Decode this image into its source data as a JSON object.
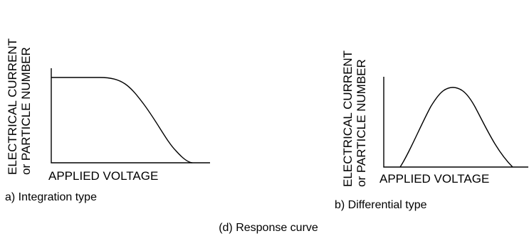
{
  "left_panel": {
    "y_axis_label_line1": "ELECTRICAL CURRENT",
    "y_axis_label_line2": "or PARTICLE NUMBER",
    "x_axis_label": "APPLIED VOLTAGE",
    "caption": "a) Integration type",
    "curve": "plateau-then-falling"
  },
  "right_panel": {
    "y_axis_label_line1": "ELECTRICAL CURRENT",
    "y_axis_label_line2": "or PARTICLE NUMBER",
    "x_axis_label": "APPLIED VOLTAGE",
    "caption": "b) Differential type",
    "curve": "bell-shaped-peak"
  },
  "figure_caption": "(d) Response curve"
}
